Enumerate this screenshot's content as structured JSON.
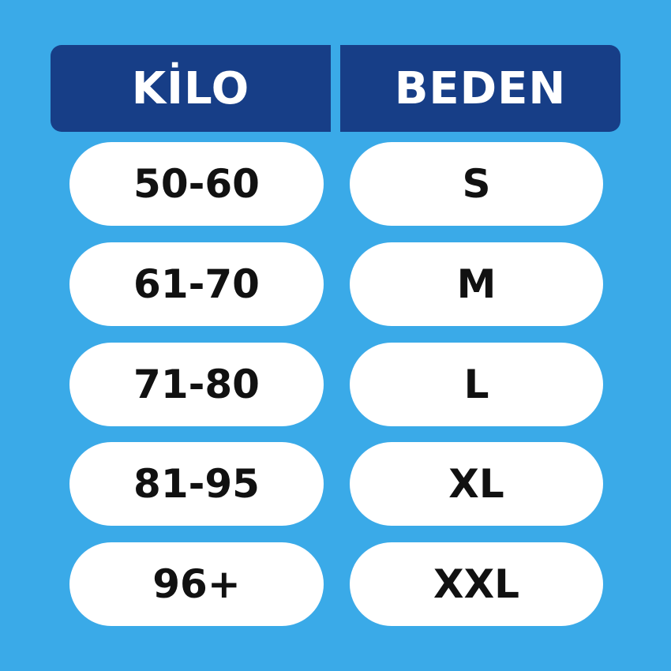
{
  "colors": {
    "background": "#3aaae8",
    "header": "#173e87",
    "cell": "#ffffff",
    "text": "#111111"
  },
  "headers": {
    "weight": "KİLO",
    "size": "BEDEN"
  },
  "rows": [
    {
      "weight": "50-60",
      "size": "S"
    },
    {
      "weight": "61-70",
      "size": "M"
    },
    {
      "weight": "71-80",
      "size": "L"
    },
    {
      "weight": "81-95",
      "size": "XL"
    },
    {
      "weight": "96+",
      "size": "XXL"
    }
  ]
}
